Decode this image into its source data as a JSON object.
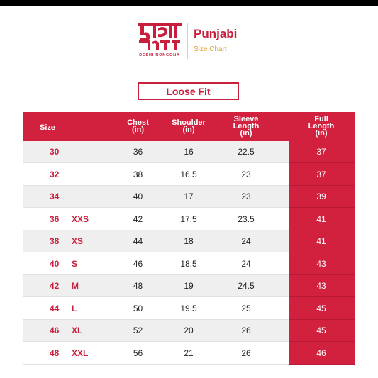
{
  "brand": {
    "logo_text": "দেশি রঙ্গনা",
    "logo_subtext": "DESHI RONGONA",
    "title": "Punjabi",
    "subtitle": "Size Chart"
  },
  "fit": "Loose Fit",
  "colors": {
    "accent": "#d1213f",
    "subtitle": "#e0a13a",
    "row_shade": "#efefef"
  },
  "table": {
    "headers": {
      "size": "Size",
      "chest": [
        "Chest",
        "(in)"
      ],
      "shoulder": [
        "Shoulder",
        "(in)"
      ],
      "sleeve": [
        "Sleeve",
        "Length",
        "(in)"
      ],
      "full": [
        "Full",
        "Length",
        "(in)"
      ]
    },
    "rows": [
      {
        "size": "30",
        "label": "",
        "chest": "36",
        "shoulder": "16",
        "sleeve": "22.5",
        "full": "37"
      },
      {
        "size": "32",
        "label": "",
        "chest": "38",
        "shoulder": "16.5",
        "sleeve": "23",
        "full": "37"
      },
      {
        "size": "34",
        "label": "",
        "chest": "40",
        "shoulder": "17",
        "sleeve": "23",
        "full": "39"
      },
      {
        "size": "36",
        "label": "XXS",
        "chest": "42",
        "shoulder": "17.5",
        "sleeve": "23.5",
        "full": "41"
      },
      {
        "size": "38",
        "label": "XS",
        "chest": "44",
        "shoulder": "18",
        "sleeve": "24",
        "full": "41"
      },
      {
        "size": "40",
        "label": "S",
        "chest": "46",
        "shoulder": "18.5",
        "sleeve": "24",
        "full": "43"
      },
      {
        "size": "42",
        "label": "M",
        "chest": "48",
        "shoulder": "19",
        "sleeve": "24.5",
        "full": "43"
      },
      {
        "size": "44",
        "label": "L",
        "chest": "50",
        "shoulder": "19.5",
        "sleeve": "25",
        "full": "45"
      },
      {
        "size": "46",
        "label": "XL",
        "chest": "52",
        "shoulder": "20",
        "sleeve": "26",
        "full": "45"
      },
      {
        "size": "48",
        "label": "XXL",
        "chest": "56",
        "shoulder": "21",
        "sleeve": "26",
        "full": "46"
      }
    ]
  }
}
